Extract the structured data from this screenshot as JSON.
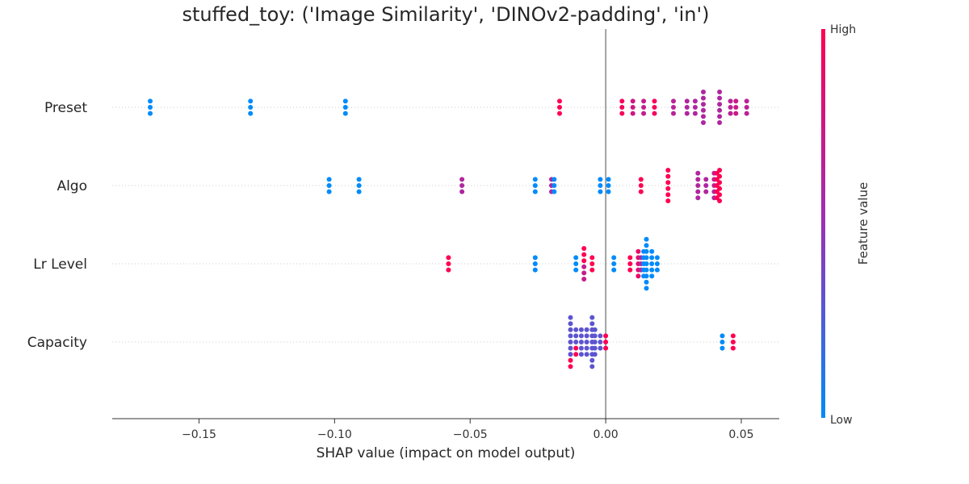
{
  "chart_data": {
    "type": "scatter",
    "subtype": "shap-beeswarm",
    "title": "stuffed_toy: ('Image Similarity', 'DINOv2-padding', 'in')",
    "xlabel": "SHAP value (impact on model output)",
    "ylabel": "",
    "xlim": [
      -0.182,
      0.064
    ],
    "xticks": [
      -0.15,
      -0.1,
      -0.05,
      0.0,
      0.05
    ],
    "xtick_labels": [
      "−0.15",
      "−0.10",
      "−0.05",
      "0.00",
      "0.05"
    ],
    "grid": false,
    "zero_line": true,
    "colorbar": {
      "label": "Feature value",
      "high_label": "High",
      "low_label": "Low",
      "low_color": "#008bfb",
      "high_color": "#ff0052"
    },
    "features": [
      {
        "name": "Preset",
        "points": [
          {
            "x": -0.168,
            "v": 0.0
          },
          {
            "x": -0.168,
            "v": 0.0
          },
          {
            "x": -0.168,
            "v": 0.0
          },
          {
            "x": -0.131,
            "v": 0.0
          },
          {
            "x": -0.131,
            "v": 0.0
          },
          {
            "x": -0.131,
            "v": 0.0
          },
          {
            "x": -0.096,
            "v": 0.0
          },
          {
            "x": -0.096,
            "v": 0.0
          },
          {
            "x": -0.096,
            "v": 0.0
          },
          {
            "x": -0.017,
            "v": 1.0
          },
          {
            "x": -0.017,
            "v": 1.0
          },
          {
            "x": -0.017,
            "v": 1.0
          },
          {
            "x": 0.006,
            "v": 0.95
          },
          {
            "x": 0.006,
            "v": 0.95
          },
          {
            "x": 0.006,
            "v": 0.95
          },
          {
            "x": 0.01,
            "v": 0.75
          },
          {
            "x": 0.01,
            "v": 0.75
          },
          {
            "x": 0.01,
            "v": 0.75
          },
          {
            "x": 0.014,
            "v": 0.7
          },
          {
            "x": 0.014,
            "v": 0.7
          },
          {
            "x": 0.014,
            "v": 0.7
          },
          {
            "x": 0.018,
            "v": 0.95
          },
          {
            "x": 0.018,
            "v": 0.95
          },
          {
            "x": 0.018,
            "v": 0.95
          },
          {
            "x": 0.025,
            "v": 0.65
          },
          {
            "x": 0.025,
            "v": 0.65
          },
          {
            "x": 0.025,
            "v": 0.65
          },
          {
            "x": 0.03,
            "v": 0.6
          },
          {
            "x": 0.03,
            "v": 0.6
          },
          {
            "x": 0.03,
            "v": 0.6
          },
          {
            "x": 0.033,
            "v": 0.6
          },
          {
            "x": 0.033,
            "v": 0.6
          },
          {
            "x": 0.033,
            "v": 0.6
          },
          {
            "x": 0.036,
            "v": 0.6
          },
          {
            "x": 0.036,
            "v": 0.6
          },
          {
            "x": 0.036,
            "v": 0.6
          },
          {
            "x": 0.036,
            "v": 0.6
          },
          {
            "x": 0.036,
            "v": 0.6
          },
          {
            "x": 0.036,
            "v": 0.6
          },
          {
            "x": 0.042,
            "v": 0.6
          },
          {
            "x": 0.042,
            "v": 0.6
          },
          {
            "x": 0.042,
            "v": 0.6
          },
          {
            "x": 0.042,
            "v": 0.6
          },
          {
            "x": 0.042,
            "v": 0.6
          },
          {
            "x": 0.042,
            "v": 0.6
          },
          {
            "x": 0.046,
            "v": 0.65
          },
          {
            "x": 0.046,
            "v": 0.65
          },
          {
            "x": 0.046,
            "v": 0.65
          },
          {
            "x": 0.048,
            "v": 0.75
          },
          {
            "x": 0.048,
            "v": 0.75
          },
          {
            "x": 0.048,
            "v": 0.75
          },
          {
            "x": 0.052,
            "v": 0.65
          },
          {
            "x": 0.052,
            "v": 0.65
          },
          {
            "x": 0.052,
            "v": 0.65
          }
        ]
      },
      {
        "name": "Algo",
        "points": [
          {
            "x": -0.102,
            "v": 0.0
          },
          {
            "x": -0.102,
            "v": 0.0
          },
          {
            "x": -0.102,
            "v": 0.0
          },
          {
            "x": -0.091,
            "v": 0.0
          },
          {
            "x": -0.091,
            "v": 0.0
          },
          {
            "x": -0.091,
            "v": 0.0
          },
          {
            "x": -0.053,
            "v": 0.6
          },
          {
            "x": -0.053,
            "v": 0.6
          },
          {
            "x": -0.053,
            "v": 0.6
          },
          {
            "x": -0.026,
            "v": 0.0
          },
          {
            "x": -0.026,
            "v": 0.0
          },
          {
            "x": -0.026,
            "v": 0.0
          },
          {
            "x": -0.02,
            "v": 0.6
          },
          {
            "x": -0.02,
            "v": 0.6
          },
          {
            "x": -0.02,
            "v": 0.6
          },
          {
            "x": -0.019,
            "v": 0.0
          },
          {
            "x": -0.019,
            "v": 0.0
          },
          {
            "x": -0.019,
            "v": 0.0
          },
          {
            "x": -0.002,
            "v": 0.0
          },
          {
            "x": -0.002,
            "v": 0.0
          },
          {
            "x": -0.002,
            "v": 0.0
          },
          {
            "x": 0.001,
            "v": 0.0
          },
          {
            "x": 0.001,
            "v": 0.0
          },
          {
            "x": 0.001,
            "v": 0.0
          },
          {
            "x": 0.013,
            "v": 1.0
          },
          {
            "x": 0.013,
            "v": 1.0
          },
          {
            "x": 0.013,
            "v": 1.0
          },
          {
            "x": 0.023,
            "v": 1.0
          },
          {
            "x": 0.023,
            "v": 1.0
          },
          {
            "x": 0.023,
            "v": 1.0
          },
          {
            "x": 0.023,
            "v": 1.0
          },
          {
            "x": 0.023,
            "v": 1.0
          },
          {
            "x": 0.023,
            "v": 1.0
          },
          {
            "x": 0.034,
            "v": 0.6
          },
          {
            "x": 0.034,
            "v": 0.6
          },
          {
            "x": 0.034,
            "v": 0.6
          },
          {
            "x": 0.034,
            "v": 0.6
          },
          {
            "x": 0.034,
            "v": 0.6
          },
          {
            "x": 0.037,
            "v": 0.6
          },
          {
            "x": 0.037,
            "v": 0.6
          },
          {
            "x": 0.037,
            "v": 0.6
          },
          {
            "x": 0.04,
            "v": 0.7
          },
          {
            "x": 0.04,
            "v": 0.7
          },
          {
            "x": 0.04,
            "v": 0.7
          },
          {
            "x": 0.04,
            "v": 0.6
          },
          {
            "x": 0.04,
            "v": 0.6
          },
          {
            "x": 0.041,
            "v": 1.0
          },
          {
            "x": 0.041,
            "v": 1.0
          },
          {
            "x": 0.041,
            "v": 1.0
          },
          {
            "x": 0.041,
            "v": 1.0
          },
          {
            "x": 0.041,
            "v": 1.0
          },
          {
            "x": 0.042,
            "v": 1.0
          },
          {
            "x": 0.042,
            "v": 1.0
          },
          {
            "x": 0.042,
            "v": 1.0
          },
          {
            "x": 0.042,
            "v": 1.0
          },
          {
            "x": 0.042,
            "v": 1.0
          },
          {
            "x": 0.042,
            "v": 1.0
          }
        ]
      },
      {
        "name": "Lr Level",
        "points": [
          {
            "x": -0.058,
            "v": 1.0
          },
          {
            "x": -0.058,
            "v": 1.0
          },
          {
            "x": -0.058,
            "v": 1.0
          },
          {
            "x": -0.026,
            "v": 0.0
          },
          {
            "x": -0.026,
            "v": 0.0
          },
          {
            "x": -0.026,
            "v": 0.0
          },
          {
            "x": -0.011,
            "v": 0.0
          },
          {
            "x": -0.011,
            "v": 0.0
          },
          {
            "x": -0.011,
            "v": 0.0
          },
          {
            "x": -0.008,
            "v": 1.0
          },
          {
            "x": -0.008,
            "v": 1.0
          },
          {
            "x": -0.008,
            "v": 1.0
          },
          {
            "x": -0.008,
            "v": 0.7
          },
          {
            "x": -0.008,
            "v": 0.7
          },
          {
            "x": -0.008,
            "v": 0.7
          },
          {
            "x": -0.005,
            "v": 1.0
          },
          {
            "x": -0.005,
            "v": 1.0
          },
          {
            "x": -0.005,
            "v": 1.0
          },
          {
            "x": 0.003,
            "v": 0.0
          },
          {
            "x": 0.003,
            "v": 0.0
          },
          {
            "x": 0.003,
            "v": 0.0
          },
          {
            "x": 0.009,
            "v": 1.0
          },
          {
            "x": 0.009,
            "v": 1.0
          },
          {
            "x": 0.009,
            "v": 1.0
          },
          {
            "x": 0.012,
            "v": 0.9
          },
          {
            "x": 0.012,
            "v": 0.9
          },
          {
            "x": 0.012,
            "v": 0.9
          },
          {
            "x": 0.012,
            "v": 0.9
          },
          {
            "x": 0.012,
            "v": 0.9
          },
          {
            "x": 0.013,
            "v": 0.6
          },
          {
            "x": 0.013,
            "v": 0.6
          },
          {
            "x": 0.013,
            "v": 0.6
          },
          {
            "x": 0.014,
            "v": 0.0
          },
          {
            "x": 0.014,
            "v": 0.0
          },
          {
            "x": 0.014,
            "v": 0.0
          },
          {
            "x": 0.014,
            "v": 0.0
          },
          {
            "x": 0.014,
            "v": 0.0
          },
          {
            "x": 0.015,
            "v": 0.0
          },
          {
            "x": 0.015,
            "v": 0.0
          },
          {
            "x": 0.015,
            "v": 0.0
          },
          {
            "x": 0.015,
            "v": 0.0
          },
          {
            "x": 0.015,
            "v": 0.0
          },
          {
            "x": 0.015,
            "v": 0.0
          },
          {
            "x": 0.015,
            "v": 0.0
          },
          {
            "x": 0.015,
            "v": 0.0
          },
          {
            "x": 0.015,
            "v": 0.0
          },
          {
            "x": 0.017,
            "v": 0.0
          },
          {
            "x": 0.017,
            "v": 0.0
          },
          {
            "x": 0.017,
            "v": 0.0
          },
          {
            "x": 0.017,
            "v": 0.0
          },
          {
            "x": 0.017,
            "v": 0.0
          },
          {
            "x": 0.019,
            "v": 0.0
          },
          {
            "x": 0.019,
            "v": 0.0
          },
          {
            "x": 0.019,
            "v": 0.0
          }
        ]
      },
      {
        "name": "Capacity",
        "points": [
          {
            "x": -0.013,
            "v": 0.3
          },
          {
            "x": -0.013,
            "v": 0.3
          },
          {
            "x": -0.013,
            "v": 0.3
          },
          {
            "x": -0.013,
            "v": 0.3
          },
          {
            "x": -0.013,
            "v": 0.3
          },
          {
            "x": -0.013,
            "v": 0.3
          },
          {
            "x": -0.013,
            "v": 0.3
          },
          {
            "x": -0.013,
            "v": 1.0
          },
          {
            "x": -0.013,
            "v": 1.0
          },
          {
            "x": -0.011,
            "v": 0.3
          },
          {
            "x": -0.011,
            "v": 0.3
          },
          {
            "x": -0.011,
            "v": 0.3
          },
          {
            "x": -0.011,
            "v": 1.0
          },
          {
            "x": -0.011,
            "v": 1.0
          },
          {
            "x": -0.009,
            "v": 0.3
          },
          {
            "x": -0.009,
            "v": 0.3
          },
          {
            "x": -0.009,
            "v": 0.3
          },
          {
            "x": -0.009,
            "v": 0.3
          },
          {
            "x": -0.009,
            "v": 0.3
          },
          {
            "x": -0.007,
            "v": 0.3
          },
          {
            "x": -0.007,
            "v": 0.3
          },
          {
            "x": -0.007,
            "v": 0.3
          },
          {
            "x": -0.007,
            "v": 0.3
          },
          {
            "x": -0.007,
            "v": 0.3
          },
          {
            "x": -0.005,
            "v": 0.3
          },
          {
            "x": -0.005,
            "v": 0.3
          },
          {
            "x": -0.005,
            "v": 0.3
          },
          {
            "x": -0.005,
            "v": 0.3
          },
          {
            "x": -0.005,
            "v": 0.3
          },
          {
            "x": -0.005,
            "v": 0.3
          },
          {
            "x": -0.005,
            "v": 0.3
          },
          {
            "x": -0.005,
            "v": 0.3
          },
          {
            "x": -0.005,
            "v": 0.3
          },
          {
            "x": -0.004,
            "v": 0.3
          },
          {
            "x": -0.004,
            "v": 0.3
          },
          {
            "x": -0.004,
            "v": 0.3
          },
          {
            "x": -0.004,
            "v": 0.3
          },
          {
            "x": -0.004,
            "v": 0.3
          },
          {
            "x": -0.002,
            "v": 0.3
          },
          {
            "x": -0.002,
            "v": 0.3
          },
          {
            "x": -0.002,
            "v": 0.3
          },
          {
            "x": 0.0,
            "v": 1.0
          },
          {
            "x": 0.0,
            "v": 1.0
          },
          {
            "x": 0.0,
            "v": 1.0
          },
          {
            "x": 0.043,
            "v": 0.0
          },
          {
            "x": 0.043,
            "v": 0.0
          },
          {
            "x": 0.043,
            "v": 0.0
          },
          {
            "x": 0.047,
            "v": 1.0
          },
          {
            "x": 0.047,
            "v": 1.0
          },
          {
            "x": 0.047,
            "v": 1.0
          }
        ]
      }
    ]
  }
}
